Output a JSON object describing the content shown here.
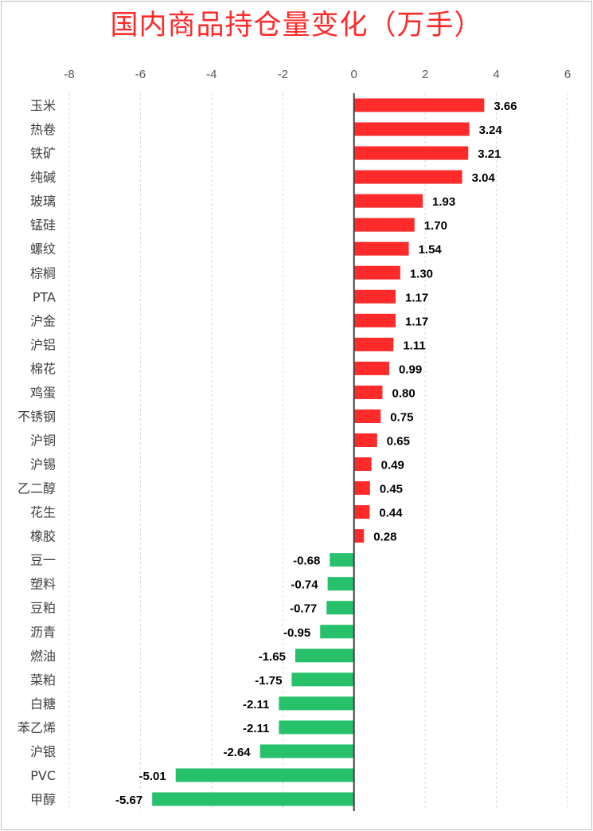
{
  "chart_data": {
    "type": "bar",
    "orientation": "horizontal",
    "title": "国内商品持仓量变化（万手）",
    "xlim": [
      -8,
      6
    ],
    "x_ticks": [
      "-8",
      "-6",
      "-4",
      "-2",
      "0",
      "2",
      "4",
      "6"
    ],
    "grid": "vertical dashed",
    "colors": {
      "positive": "#ff2a2a",
      "negative": "#27c06b",
      "title": "#ff2a2a"
    },
    "categories": [
      "玉米",
      "热卷",
      "铁矿",
      "纯碱",
      "玻璃",
      "锰硅",
      "螺纹",
      "棕榈",
      "PTA",
      "沪金",
      "沪铝",
      "棉花",
      "鸡蛋",
      "不锈钢",
      "沪铜",
      "沪锡",
      "乙二醇",
      "花生",
      "橡胶",
      "豆一",
      "塑料",
      "豆粕",
      "沥青",
      "燃油",
      "菜粕",
      "白糖",
      "苯乙烯",
      "沪银",
      "PVC",
      "甲醇"
    ],
    "values": [
      3.66,
      3.24,
      3.21,
      3.04,
      1.93,
      1.7,
      1.54,
      1.3,
      1.17,
      1.17,
      1.11,
      0.99,
      0.8,
      0.75,
      0.65,
      0.49,
      0.45,
      0.44,
      0.28,
      -0.68,
      -0.74,
      -0.77,
      -0.95,
      -1.65,
      -1.75,
      -2.11,
      -2.11,
      -2.64,
      -5.01,
      -5.67
    ],
    "labels": [
      "3.66",
      "3.24",
      "3.21",
      "3.04",
      "1.93",
      "1.70",
      "1.54",
      "1.30",
      "1.17",
      "1.17",
      "1.11",
      "0.99",
      "0.80",
      "0.75",
      "0.65",
      "0.49",
      "0.45",
      "0.44",
      "0.28",
      "-0.68",
      "-0.74",
      "-0.77",
      "-0.95",
      "-1.65",
      "-1.75",
      "-2.11",
      "-2.11",
      "-2.64",
      "-5.01",
      "-5.67"
    ]
  }
}
